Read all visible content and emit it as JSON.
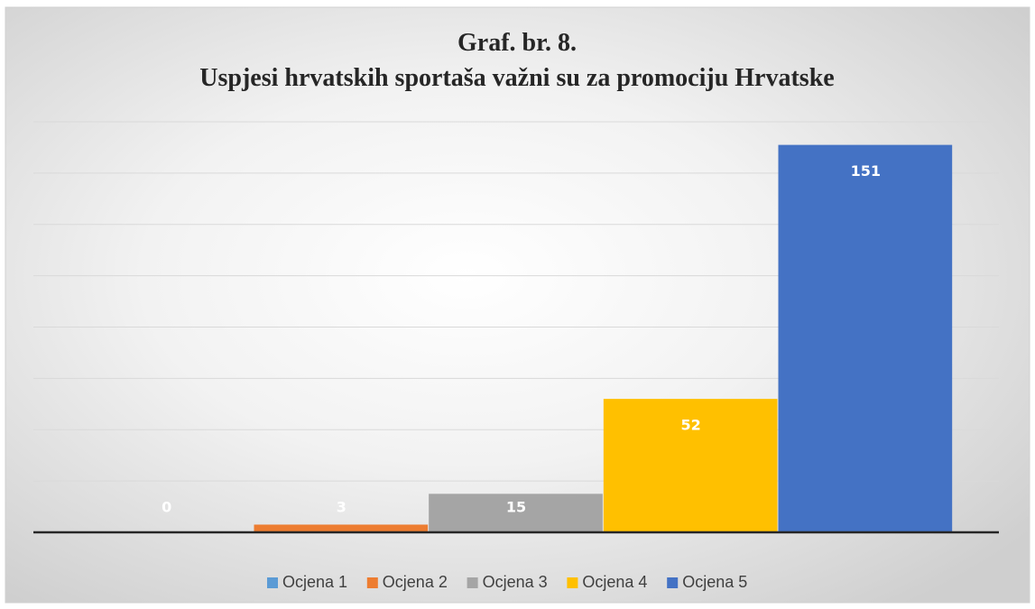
{
  "chart_data": {
    "type": "bar",
    "title": [
      "Graf. br. 8.",
      "Uspjesi hrvatskih sportaša važni su za promociju Hrvatske"
    ],
    "series": [
      {
        "name": "Ocjena 1",
        "color": "#5b9bd5",
        "values": [
          0
        ]
      },
      {
        "name": "Ocjena 2",
        "color": "#ed7d31",
        "values": [
          3
        ]
      },
      {
        "name": "Ocjena 3",
        "color": "#a5a5a5",
        "values": [
          15
        ]
      },
      {
        "name": "Ocjena 4",
        "color": "#ffc000",
        "values": [
          52
        ]
      },
      {
        "name": "Ocjena 5",
        "color": "#4472c4",
        "values": [
          151
        ]
      }
    ],
    "ylim": [
      0,
      160
    ],
    "yticks": [
      0,
      20,
      40,
      60,
      80,
      100,
      120,
      140,
      160
    ],
    "grid": true,
    "legend": "bottom"
  }
}
